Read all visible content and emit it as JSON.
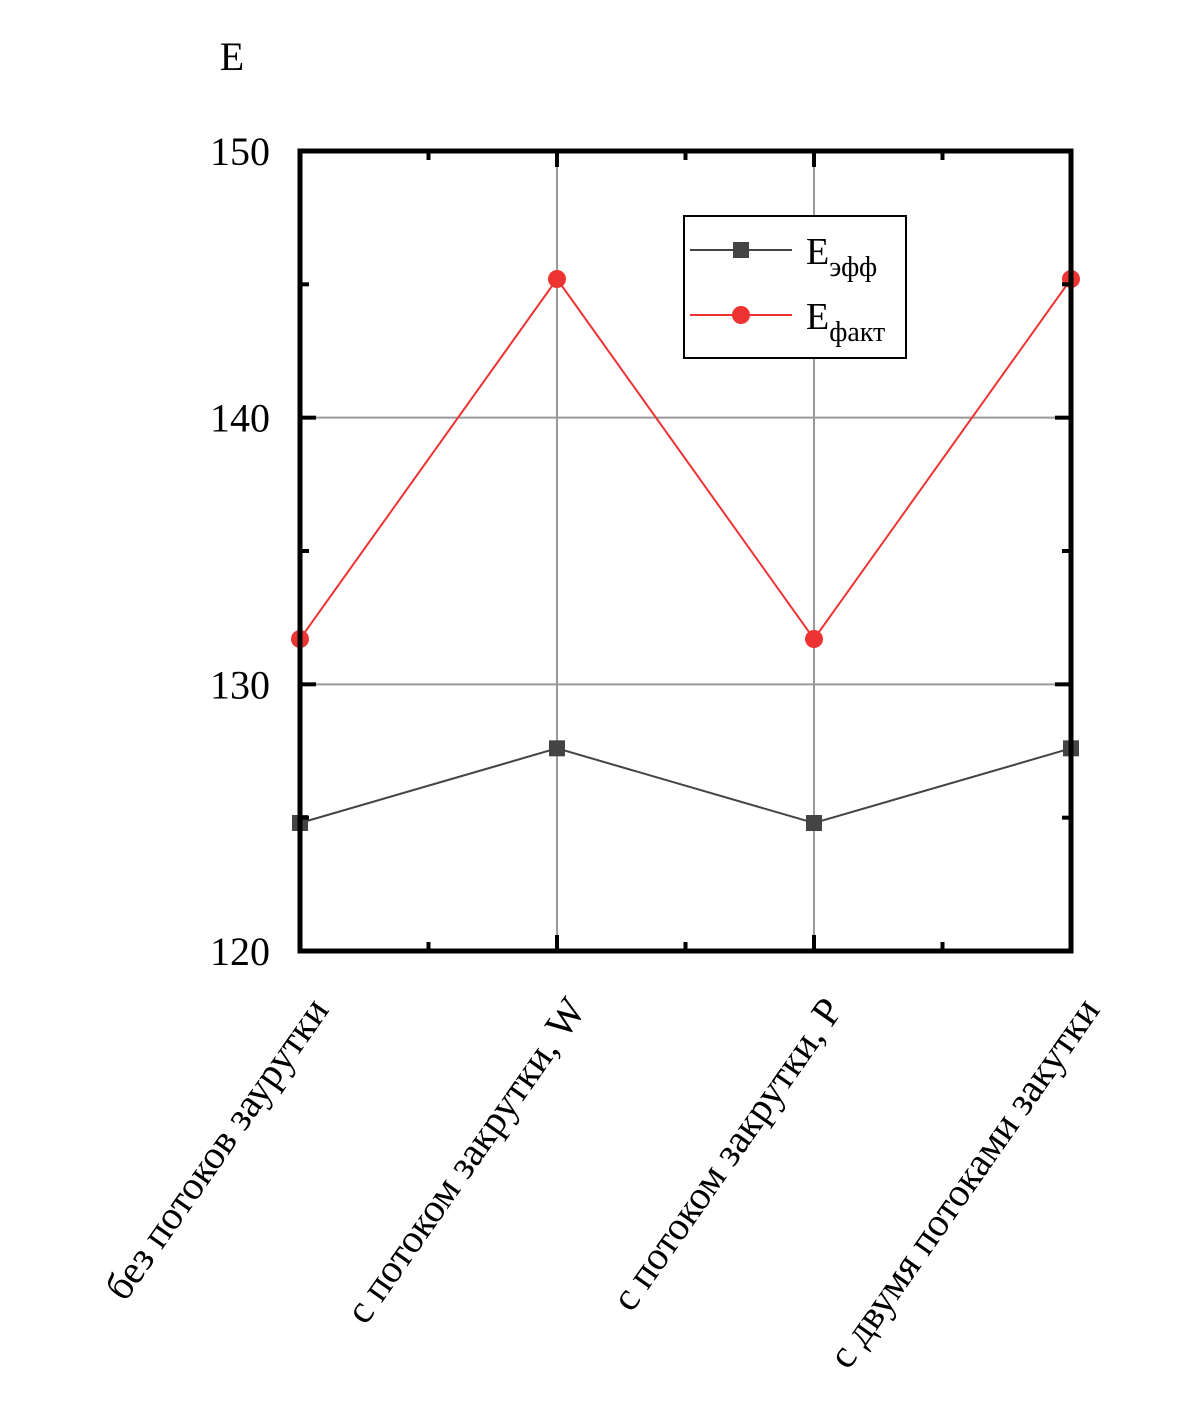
{
  "chart_data": {
    "type": "line",
    "ylabel": "E",
    "ylim": [
      120,
      150
    ],
    "yticks": [
      120,
      130,
      140,
      150
    ],
    "grid": true,
    "legend_position": "top-right",
    "categories": [
      "без потоков заурутки",
      "с потоком закрутки, W",
      "с потоком закрутки, P",
      "с двумя потоками закутки"
    ],
    "series": [
      {
        "name": "E",
        "name_subscript": "эфф",
        "marker": "square",
        "color": "#444444",
        "values": [
          124.8,
          127.6,
          124.8,
          127.6
        ]
      },
      {
        "name": "E",
        "name_subscript": "факт",
        "marker": "circle",
        "color": "#ee3333",
        "values": [
          131.7,
          145.2,
          131.7,
          145.2
        ]
      }
    ]
  }
}
